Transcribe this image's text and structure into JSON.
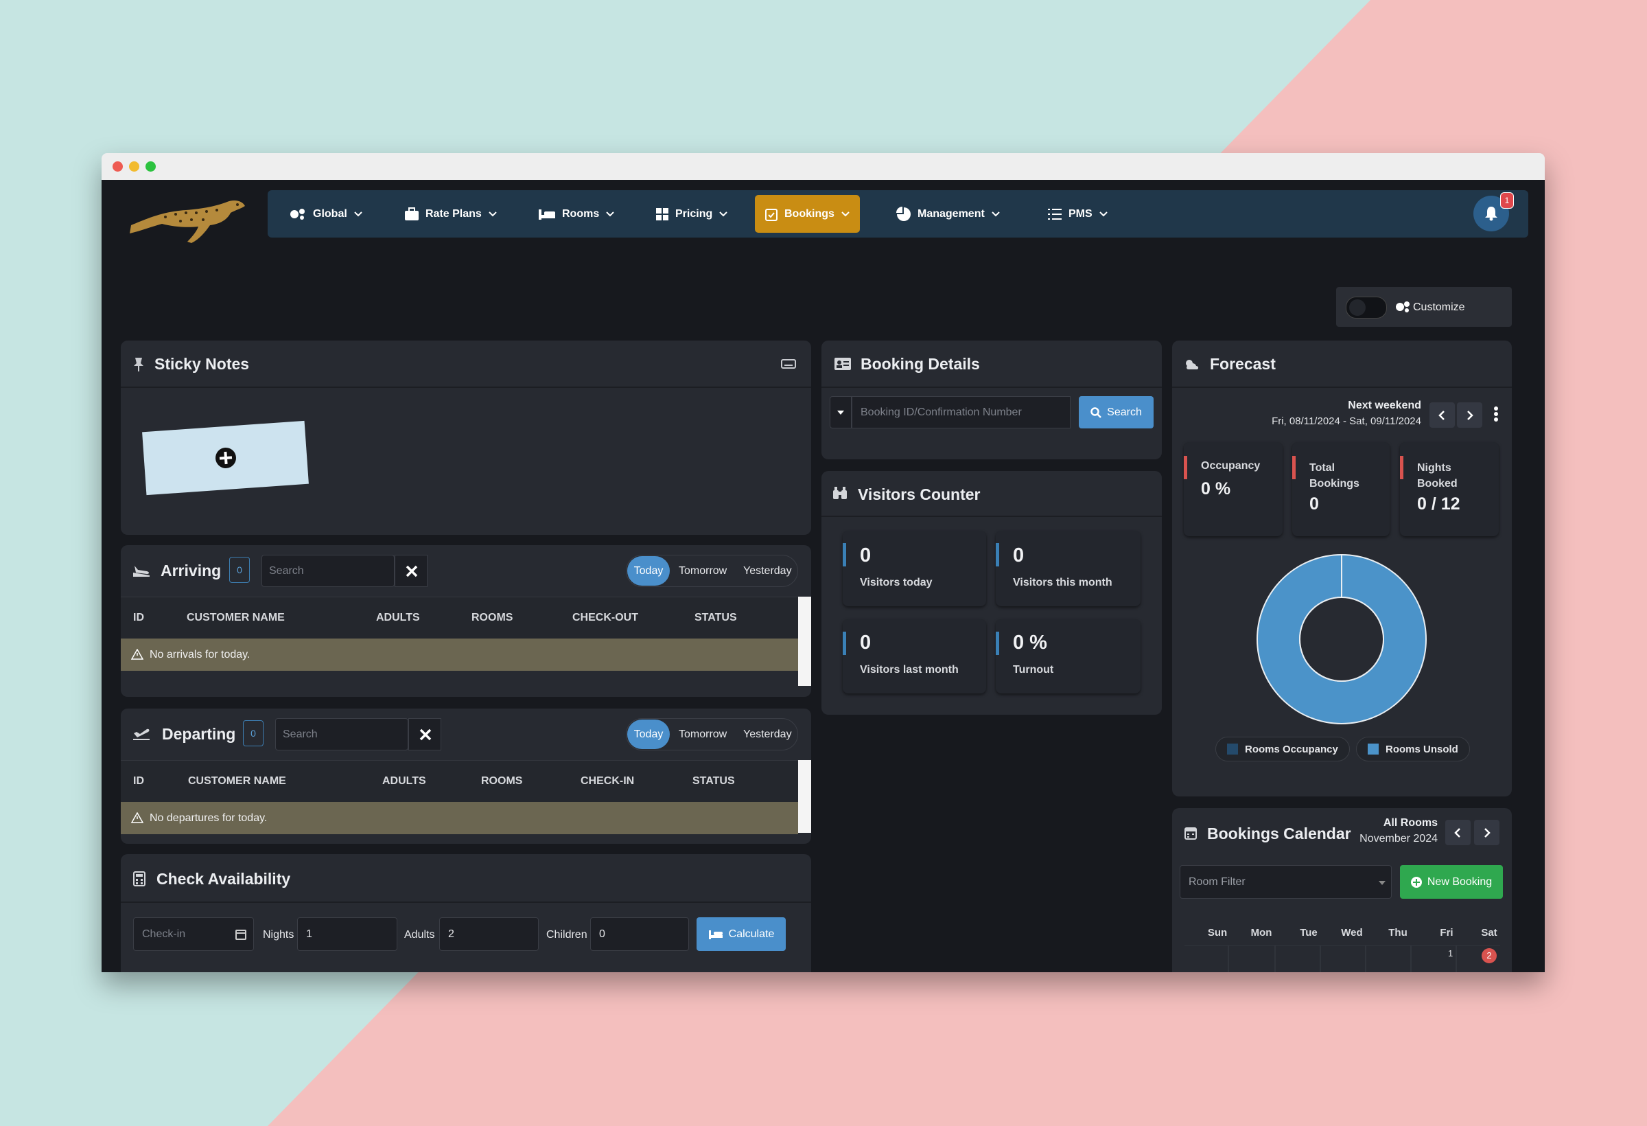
{
  "nav": {
    "items": [
      "Global",
      "Rate Plans",
      "Rooms",
      "Pricing",
      "Bookings",
      "Management",
      "PMS"
    ],
    "notification_count": 1
  },
  "customize": "Customize",
  "sticky_notes": {
    "title": "Sticky Notes"
  },
  "arriving": {
    "title": "Arriving",
    "count": 0,
    "search_placeholder": "Search",
    "tabs": [
      "Today",
      "Tomorrow",
      "Yesterday"
    ],
    "columns": [
      "ID",
      "CUSTOMER NAME",
      "ADULTS",
      "ROOMS",
      "CHECK-OUT",
      "STATUS"
    ],
    "empty": "No arrivals for today."
  },
  "departing": {
    "title": "Departing",
    "count": 0,
    "search_placeholder": "Search",
    "tabs": [
      "Today",
      "Tomorrow",
      "Yesterday"
    ],
    "columns": [
      "ID",
      "CUSTOMER NAME",
      "ADULTS",
      "ROOMS",
      "CHECK-IN",
      "STATUS"
    ],
    "empty": "No departures for today."
  },
  "check_availability": {
    "title": "Check Availability",
    "checkin_placeholder": "Check-in",
    "nights_label": "Nights",
    "nights": 1,
    "adults_label": "Adults",
    "adults": 2,
    "children_label": "Children",
    "children": 0,
    "button": "Calculate"
  },
  "booking_details": {
    "title": "Booking Details",
    "placeholder": "Booking ID/Confirmation Number",
    "button": "Search"
  },
  "visitors_counter": {
    "title": "Visitors Counter",
    "stats": [
      {
        "value": 0,
        "label": "Visitors today"
      },
      {
        "value": 0,
        "label": "Visitors this month"
      },
      {
        "value": 0,
        "label": "Visitors last month"
      },
      {
        "value": "0 %",
        "label": "Turnout"
      }
    ]
  },
  "forecast": {
    "title": "Forecast",
    "period": "Next weekend",
    "dates": "Fri, 08/11/2024 - Sat, 09/11/2024",
    "stats": [
      {
        "label": "Occupancy",
        "value": "0 %"
      },
      {
        "label": "Total Bookings",
        "value": 0
      },
      {
        "label": "Nights Booked",
        "value": "0 / 12"
      }
    ],
    "legend": [
      "Rooms Occupancy",
      "Rooms Unsold"
    ]
  },
  "bookings_calendar": {
    "title": "Bookings Calendar",
    "filter": "All Rooms",
    "month": "November 2024",
    "room_filter": "Room Filter",
    "button": "New Booking",
    "weekdays": [
      "Sun",
      "Mon",
      "Tue",
      "Wed",
      "Thu",
      "Fri",
      "Sat"
    ],
    "days": [
      1,
      2
    ]
  }
}
